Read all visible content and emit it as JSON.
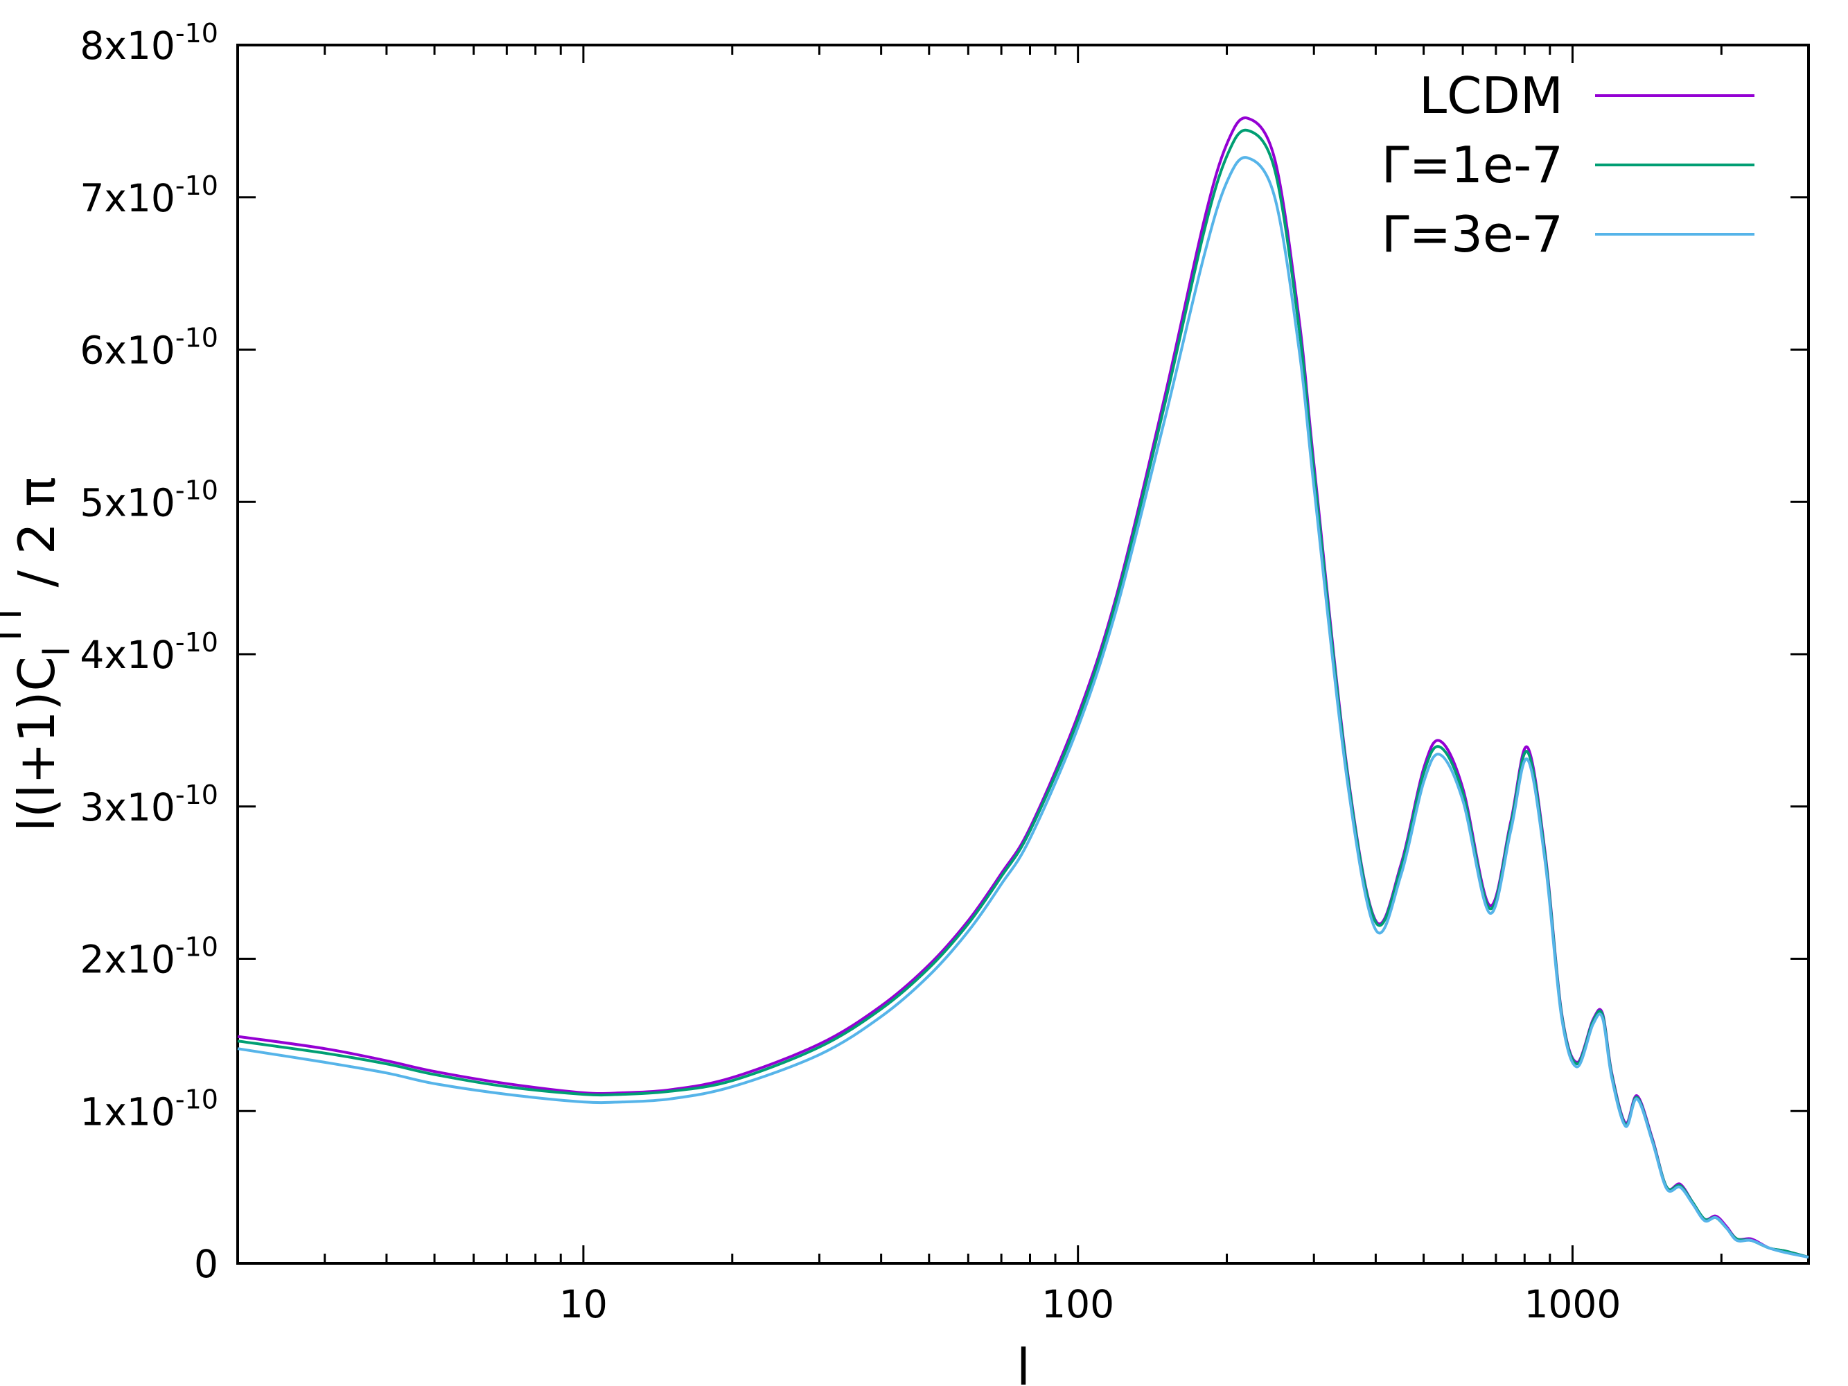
{
  "chart_data": {
    "type": "line",
    "xlabel": "l",
    "ylabel": "l(l+1)C",
    "ylabel_sub": "l",
    "ylabel_sup": "TT",
    "ylabel_tail": " / 2 π",
    "x_scale": "log",
    "xlim": [
      2,
      3000
    ],
    "ylim": [
      0,
      8e-10
    ],
    "x_ticks": [
      {
        "value": 10,
        "label": "10"
      },
      {
        "value": 100,
        "label": "100"
      },
      {
        "value": 1000,
        "label": "1000"
      }
    ],
    "y_ticks": [
      {
        "value": 0,
        "mantissa": "0",
        "exponent": ""
      },
      {
        "value": 1e-10,
        "mantissa": "1x10",
        "exponent": "-10"
      },
      {
        "value": 2e-10,
        "mantissa": "2x10",
        "exponent": "-10"
      },
      {
        "value": 3e-10,
        "mantissa": "3x10",
        "exponent": "-10"
      },
      {
        "value": 4e-10,
        "mantissa": "4x10",
        "exponent": "-10"
      },
      {
        "value": 5e-10,
        "mantissa": "5x10",
        "exponent": "-10"
      },
      {
        "value": 6e-10,
        "mantissa": "6x10",
        "exponent": "-10"
      },
      {
        "value": 7e-10,
        "mantissa": "7x10",
        "exponent": "-10"
      },
      {
        "value": 8e-10,
        "mantissa": "8x10",
        "exponent": "-10"
      }
    ],
    "grid": false,
    "legend_position": "top-right",
    "x": [
      2,
      3,
      4,
      5,
      7,
      10,
      12,
      15,
      20,
      30,
      40,
      50,
      60,
      70,
      80,
      100,
      120,
      150,
      180,
      200,
      220,
      250,
      280,
      300,
      350,
      400,
      450,
      500,
      540,
      600,
      680,
      750,
      810,
      880,
      950,
      1020,
      1100,
      1150,
      1200,
      1280,
      1350,
      1450,
      1550,
      1650,
      1750,
      1850,
      1950,
      2050,
      2150,
      2300,
      2500,
      2700,
      3000
    ],
    "series": [
      {
        "name": "LCDM",
        "color": "#9400d3",
        "values": [
          1.49e-10,
          1.41e-10,
          1.33e-10,
          1.26e-10,
          1.18e-10,
          1.12e-10,
          1.12e-10,
          1.14e-10,
          1.22e-10,
          1.44e-10,
          1.69e-10,
          1.96e-10,
          2.25e-10,
          2.56e-10,
          2.86e-10,
          3.6e-10,
          4.4e-10,
          5.7e-10,
          6.85e-10,
          7.35e-10,
          7.52e-10,
          7.25e-10,
          6.2e-10,
          5.25e-10,
          3.25e-10,
          2.25e-10,
          2.62e-10,
          3.25e-10,
          3.43e-10,
          3.12e-10,
          2.35e-10,
          2.9e-10,
          3.39e-10,
          2.7e-10,
          1.65e-10,
          1.32e-10,
          1.6e-10,
          1.64e-10,
          1.25e-10,
          9.2e-11,
          1.1e-10,
          8.2e-11,
          5e-11,
          5.2e-11,
          4e-11,
          2.9e-11,
          3.1e-11,
          2.4e-11,
          1.6e-11,
          1.6e-11,
          1e-11,
          8e-12,
          4e-12
        ]
      },
      {
        "name": "Γ=1e-7",
        "color": "#009e73",
        "values": [
          1.46e-10,
          1.38e-10,
          1.31e-10,
          1.24e-10,
          1.16e-10,
          1.11e-10,
          1.11e-10,
          1.13e-10,
          1.2e-10,
          1.42e-10,
          1.67e-10,
          1.94e-10,
          2.23e-10,
          2.54e-10,
          2.84e-10,
          3.57e-10,
          4.37e-10,
          5.65e-10,
          6.78e-10,
          7.27e-10,
          7.44e-10,
          7.18e-10,
          6.14e-10,
          5.2e-10,
          3.23e-10,
          2.24e-10,
          2.6e-10,
          3.22e-10,
          3.39e-10,
          3.09e-10,
          2.33e-10,
          2.88e-10,
          3.36e-10,
          2.68e-10,
          1.64e-10,
          1.31e-10,
          1.59e-10,
          1.63e-10,
          1.24e-10,
          9.1e-11,
          1.09e-10,
          8.1e-11,
          5e-11,
          5.1e-11,
          4e-11,
          2.9e-11,
          3e-11,
          2.3e-11,
          1.6e-11,
          1.5e-11,
          1e-11,
          8e-12,
          4e-12
        ]
      },
      {
        "name": "Γ=3e-7",
        "color": "#56b4e9",
        "values": [
          1.41e-10,
          1.32e-10,
          1.25e-10,
          1.18e-10,
          1.11e-10,
          1.06e-10,
          1.06e-10,
          1.08e-10,
          1.16e-10,
          1.37e-10,
          1.62e-10,
          1.89e-10,
          2.18e-10,
          2.49e-10,
          2.79e-10,
          3.52e-10,
          4.31e-10,
          5.55e-10,
          6.62e-10,
          7.1e-10,
          7.26e-10,
          7e-10,
          6e-10,
          5.1e-10,
          3.18e-10,
          2.19e-10,
          2.55e-10,
          3.16e-10,
          3.34e-10,
          3.04e-10,
          2.3e-10,
          2.84e-10,
          3.31e-10,
          2.64e-10,
          1.62e-10,
          1.29e-10,
          1.57e-10,
          1.61e-10,
          1.22e-10,
          9e-11,
          1.08e-10,
          8e-11,
          4.9e-11,
          5e-11,
          3.9e-11,
          2.8e-11,
          3e-11,
          2.3e-11,
          1.5e-11,
          1.5e-11,
          1e-11,
          7e-12,
          4e-12
        ]
      }
    ]
  }
}
